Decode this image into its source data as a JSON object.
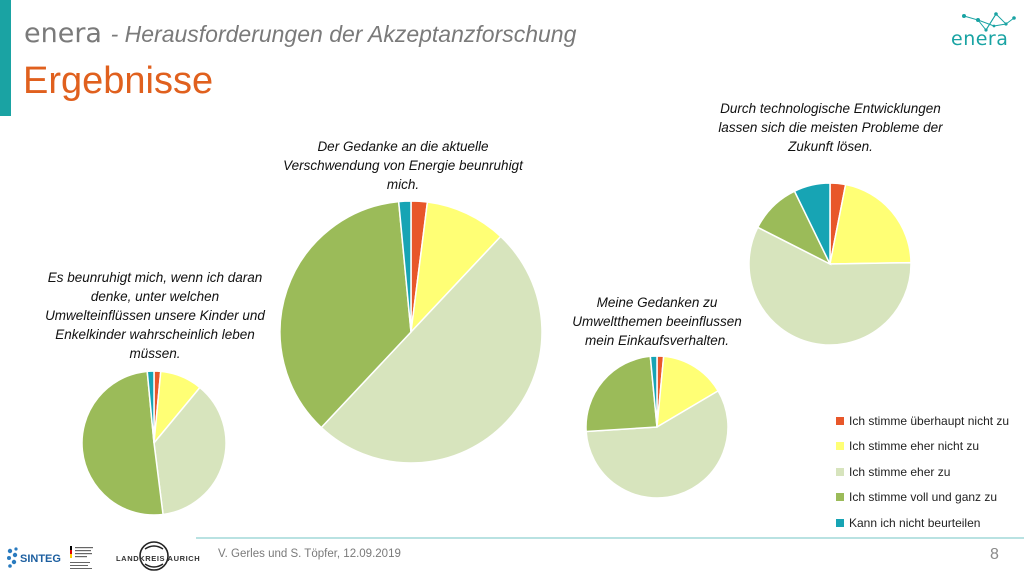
{
  "header": {
    "brand": "enera",
    "subtitle": "- Herausforderungen der Akzeptanzforschung",
    "title": "Ergebnisse",
    "logo_text": "enera"
  },
  "footer": {
    "authors": "V. Gerles und S. Töpfer, 12.09.2019",
    "page_number": "8",
    "logo_sinteg": "SINTEG",
    "logo_aurich": "LANDKREIS AURICH"
  },
  "colors": {
    "accent": "#1aa3a3",
    "title": "#e0601e"
  },
  "chart_data": [
    {
      "type": "pie",
      "title": "Es beunruhigt mich, wenn ich daran denke, unter welchen Umwelteinflüssen unsere Kinder und Enkelkinder wahrscheinlich leben müssen.",
      "categories": [
        "Ich stimme überhaupt nicht zu",
        "Ich stimme eher nicht zu",
        "Ich stimme eher zu",
        "Ich stimme voll und ganz zu",
        "Kann ich nicht beurteilen"
      ],
      "values": [
        1.5,
        9.5,
        37,
        50.5,
        1.5
      ],
      "colors": [
        "#e8572a",
        "#ffff75",
        "#d7e4bd",
        "#9bbb59",
        "#17a4b4"
      ]
    },
    {
      "type": "pie",
      "title": "Der Gedanke an die aktuelle Verschwendung von Energie beunruhigt mich.",
      "categories": [
        "Ich stimme überhaupt nicht zu",
        "Ich stimme eher nicht zu",
        "Ich stimme eher zu",
        "Ich stimme voll und ganz zu",
        "Kann ich nicht beurteilen"
      ],
      "values": [
        2,
        10,
        50,
        36.5,
        1.5
      ],
      "colors": [
        "#e8572a",
        "#ffff75",
        "#d7e4bd",
        "#9bbb59",
        "#17a4b4"
      ]
    },
    {
      "type": "pie",
      "title": "Meine Gedanken zu Umweltthemen beeinflussen mein Einkaufsverhalten.",
      "categories": [
        "Ich stimme überhaupt nicht zu",
        "Ich stimme eher nicht zu",
        "Ich stimme eher zu",
        "Ich stimme voll und ganz zu",
        "Kann ich nicht beurteilen"
      ],
      "values": [
        1.5,
        15,
        57.5,
        24.5,
        1.5
      ],
      "colors": [
        "#e8572a",
        "#ffff75",
        "#d7e4bd",
        "#9bbb59",
        "#17a4b4"
      ]
    },
    {
      "type": "pie",
      "title": "Durch technologische Entwicklungen lassen sich die meisten Probleme der Zukunft lösen.",
      "categories": [
        "Ich stimme überhaupt nicht zu",
        "Ich stimme eher nicht zu",
        "Ich stimme eher zu",
        "Ich stimme voll und ganz zu",
        "Kann ich nicht beurteilen"
      ],
      "values": [
        3,
        21,
        56,
        10,
        7
      ],
      "colors": [
        "#e8572a",
        "#ffff75",
        "#d7e4bd",
        "#9bbb59",
        "#17a4b4"
      ]
    }
  ],
  "legend": [
    {
      "label": "Ich stimme überhaupt nicht zu",
      "color": "#e8572a"
    },
    {
      "label": "Ich stimme eher nicht zu",
      "color": "#ffff75"
    },
    {
      "label": "Ich stimme eher zu",
      "color": "#d7e4bd"
    },
    {
      "label": "Ich stimme voll und ganz zu",
      "color": "#9bbb59"
    },
    {
      "label": "Kann ich nicht beurteilen",
      "color": "#17a4b4"
    }
  ]
}
